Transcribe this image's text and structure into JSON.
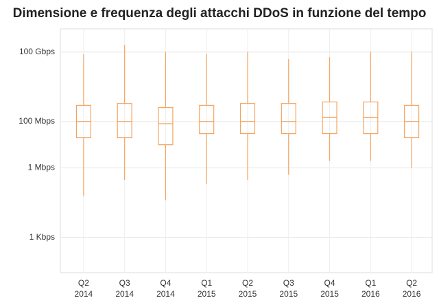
{
  "chart_data": {
    "type": "box",
    "title": "Dimensione e frequenza degli attacchi DDoS in funzione del tempo",
    "categories": [
      [
        "Q2",
        "2014"
      ],
      [
        "Q3",
        "2014"
      ],
      [
        "Q4",
        "2014"
      ],
      [
        "Q1",
        "2015"
      ],
      [
        "Q2",
        "2015"
      ],
      [
        "Q3",
        "2015"
      ],
      [
        "Q4",
        "2015"
      ],
      [
        "Q1",
        "2016"
      ],
      [
        "Q2",
        "2016"
      ]
    ],
    "whisker_low": [
      60000,
      300000,
      40000,
      200000,
      300000,
      500000,
      2000000,
      2000000,
      1000000
    ],
    "q1": [
      20000000,
      20000000,
      10000000,
      30000000,
      30000000,
      30000000,
      30000000,
      30000000,
      20000000
    ],
    "median": [
      100000000,
      100000000,
      80000000,
      100000000,
      100000000,
      100000000,
      150000000,
      150000000,
      100000000
    ],
    "q3": [
      500000000,
      600000000,
      400000000,
      500000000,
      600000000,
      600000000,
      700000000,
      700000000,
      500000000
    ],
    "whisker_high": [
      80000000000,
      200000000000,
      100000000000,
      80000000000,
      100000000000,
      50000000000,
      60000000000,
      100000000000,
      100000000000
    ],
    "color": "#f4a460",
    "log_y": true,
    "ylim": [
      30,
      1000000000000
    ],
    "yticks": [
      {
        "value": 1000,
        "label": "1 Kbps"
      },
      {
        "value": 1000000,
        "label": "1 Mbps"
      },
      {
        "value": 100000000,
        "label": "100 Mbps"
      },
      {
        "value": 100000000000,
        "label": "100 Gbps"
      }
    ],
    "grid": true
  }
}
